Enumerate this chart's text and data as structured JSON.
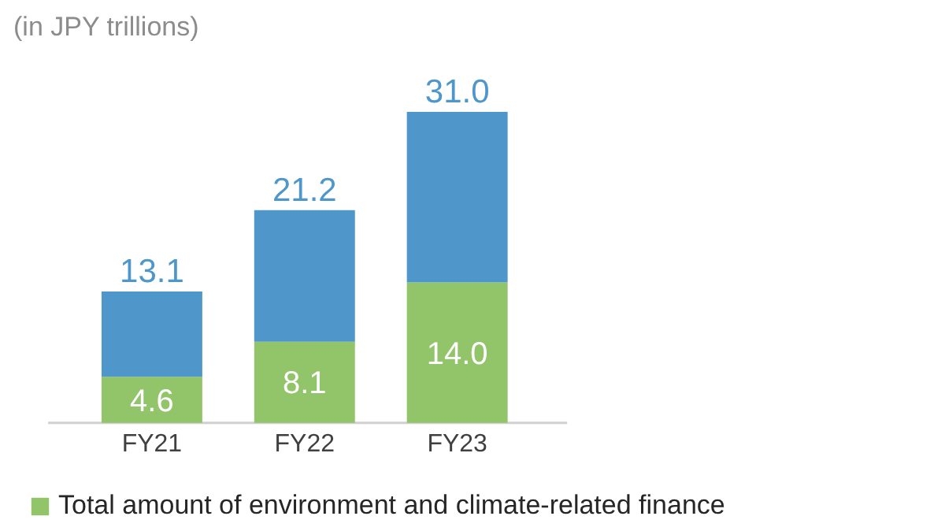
{
  "chart_data": {
    "type": "bar",
    "stacked": true,
    "ylabel": "(in JPY trillions)",
    "categories": [
      "FY21",
      "FY22",
      "FY23"
    ],
    "series": [
      {
        "name": "Total amount of environment and climate-related finance",
        "color": "#92c569",
        "values": [
          4.6,
          8.1,
          14.0
        ],
        "value_labels": [
          "4.6",
          "8.1",
          "14.0"
        ]
      },
      {
        "color": "#4f97cb",
        "values": [
          8.5,
          13.1,
          17.0
        ]
      }
    ],
    "totals": [
      "13.1",
      "21.2",
      "31.0"
    ],
    "legend": "bottom"
  }
}
